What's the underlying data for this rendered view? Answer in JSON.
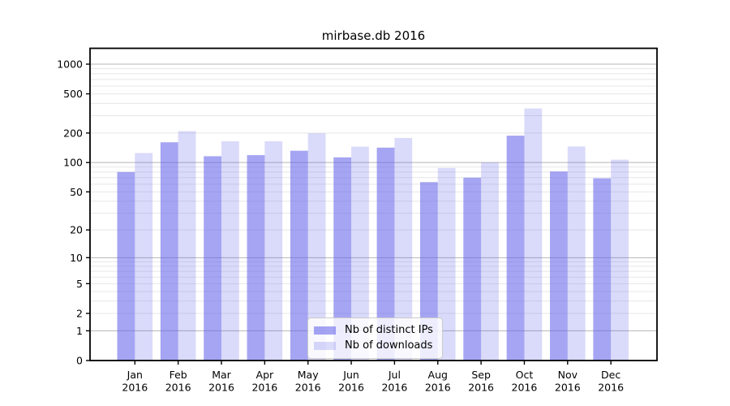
{
  "chart_data": {
    "type": "bar",
    "title": "mirbase.db 2016",
    "categories": [
      "Jan",
      "Feb",
      "Mar",
      "Apr",
      "May",
      "Jun",
      "Jul",
      "Aug",
      "Sep",
      "Oct",
      "Nov",
      "Dec"
    ],
    "year_label": "2016",
    "series": [
      {
        "name": "Nb of distinct IPs",
        "color": "rgba(100,100,235,0.58)",
        "values": [
          80,
          161,
          116,
          119,
          132,
          113,
          142,
          63,
          70,
          188,
          81,
          69
        ]
      },
      {
        "name": "Nb of downloads",
        "color": "rgba(100,100,235,0.24)",
        "values": [
          125,
          209,
          165,
          165,
          199,
          145,
          178,
          88,
          100,
          355,
          146,
          107
        ]
      }
    ],
    "y_axis": {
      "ticks": [
        0,
        1,
        2,
        5,
        10,
        20,
        50,
        100,
        200,
        500,
        1000
      ],
      "scale": "log10(1+v)",
      "ylim": [
        0,
        1445
      ]
    },
    "grid": {
      "major_at": [
        1,
        10,
        100,
        1000
      ],
      "minor_per_decade": [
        2,
        3,
        4,
        5,
        6,
        7,
        8,
        9
      ]
    },
    "legend": {
      "position": "lower-center"
    }
  }
}
